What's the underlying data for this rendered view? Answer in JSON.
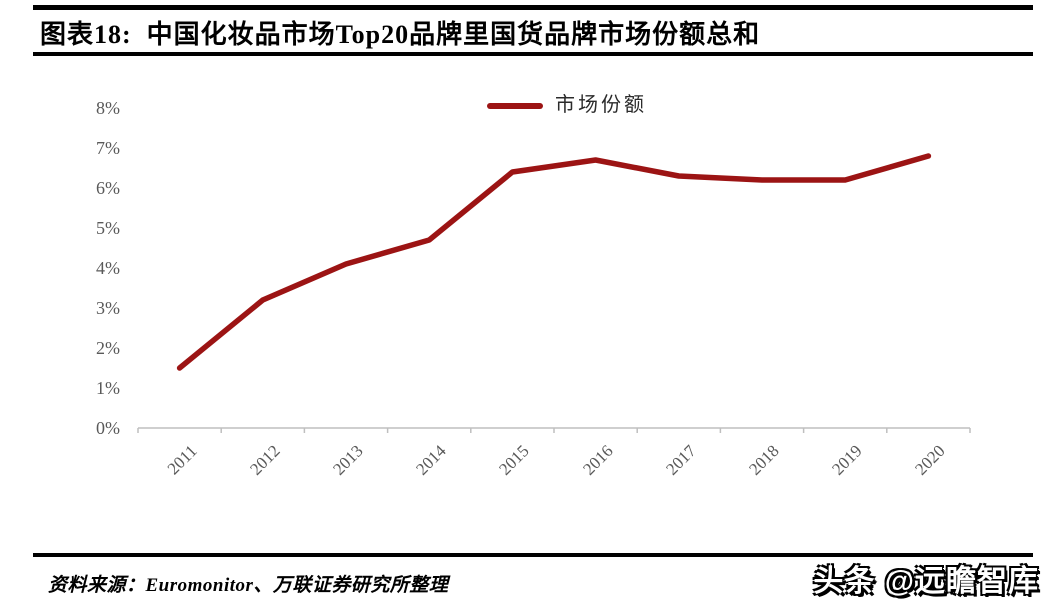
{
  "header": {
    "title": "图表18:  中国化妆品市场Top20品牌里国货品牌市场份额总和"
  },
  "legend": {
    "label": "市场份额"
  },
  "chart_data": {
    "type": "line",
    "title": "中国化妆品市场Top20品牌里国货品牌市场份额总和",
    "categories": [
      "2011",
      "2012",
      "2013",
      "2014",
      "2015",
      "2016",
      "2017",
      "2018",
      "2019",
      "2020"
    ],
    "series": [
      {
        "name": "市场份额",
        "values": [
          1.5,
          3.2,
          4.1,
          4.7,
          6.4,
          6.7,
          6.3,
          6.2,
          6.2,
          6.8
        ]
      }
    ],
    "unit": "%",
    "ylim": [
      0,
      8
    ],
    "y_ticks": [
      "0%",
      "1%",
      "2%",
      "3%",
      "4%",
      "5%",
      "6%",
      "7%",
      "8%"
    ],
    "grid": false,
    "legend_position": "top-center",
    "line_color": "#9C1414",
    "axis_line_color": "#BFBFBF",
    "tick_label_color": "#595959"
  },
  "footer": {
    "source": "资料来源：Euromonitor、万联证券研究所整理",
    "watermark": "头条 @远瞻智库"
  }
}
